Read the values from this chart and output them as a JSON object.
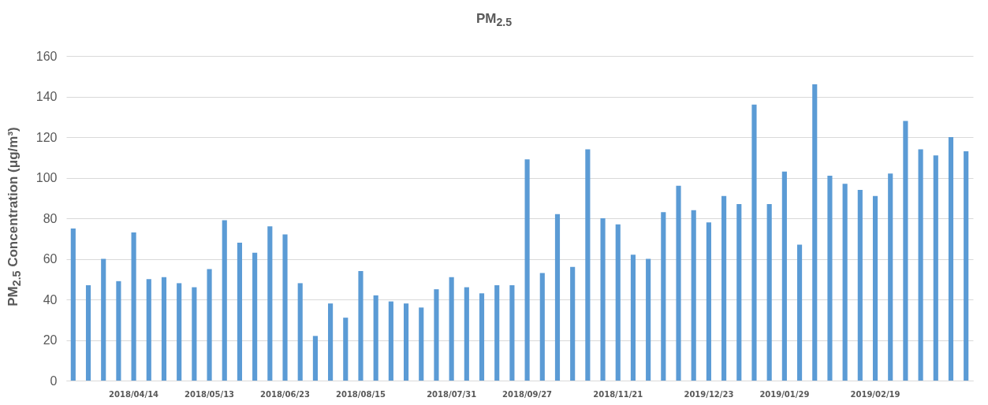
{
  "chart_data": {
    "type": "bar",
    "title": "PM$_{2.5}$",
    "ylabel": "PM$_{2.5}$ Concentration (μg/m³)",
    "categories": [
      null,
      null,
      null,
      null,
      "2018/04/14",
      null,
      null,
      null,
      null,
      "2018/05/13",
      null,
      null,
      null,
      null,
      "2018/06/23",
      null,
      null,
      null,
      null,
      "2018/08/15",
      null,
      null,
      null,
      null,
      null,
      "2018/07/31",
      null,
      null,
      null,
      null,
      "2018/09/27",
      null,
      null,
      null,
      null,
      null,
      "2018/11/21",
      null,
      null,
      null,
      null,
      null,
      "2019/12/23",
      null,
      null,
      null,
      null,
      "2019/01/29",
      null,
      null,
      null,
      null,
      null,
      "2019/02/19",
      null,
      null,
      null,
      null,
      null,
      null
    ],
    "series": [
      {
        "color": "#5b9bd5",
        "values": [
          75,
          47,
          60,
          49,
          73,
          50,
          51,
          48,
          46,
          55,
          79,
          68,
          63,
          76,
          72,
          48,
          22,
          38,
          31,
          54,
          42,
          39,
          38,
          36,
          45,
          51,
          46,
          43,
          47,
          47,
          109,
          53,
          82,
          56,
          114,
          80,
          77,
          62,
          60,
          83,
          96,
          84,
          78,
          91,
          87,
          136,
          87,
          103,
          67,
          146,
          101,
          97,
          94,
          91,
          102,
          128,
          114,
          111,
          120,
          113
        ]
      }
    ],
    "ylim": [
      0,
      160
    ],
    "yticks": [
      0,
      20,
      40,
      60,
      80,
      100,
      120,
      140,
      160
    ],
    "grid": "y",
    "legend": false
  }
}
